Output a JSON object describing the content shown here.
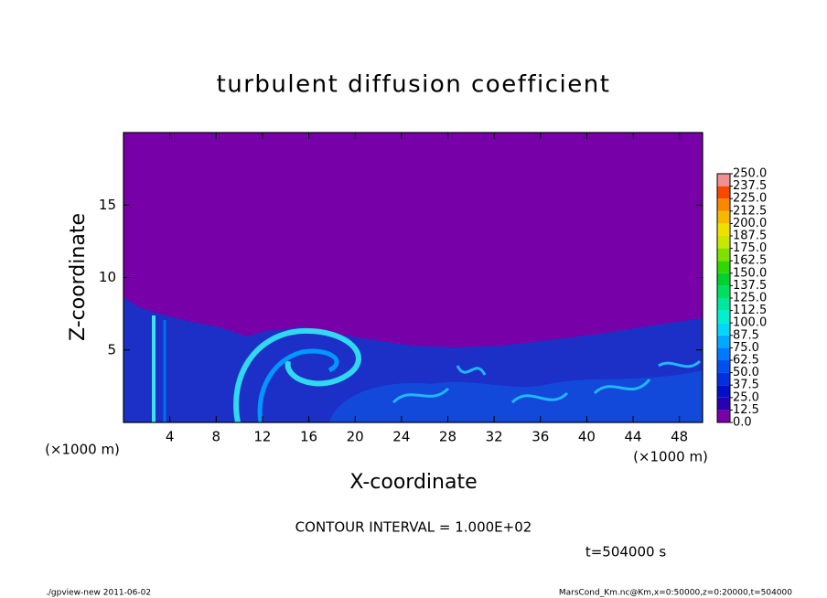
{
  "chart_data": {
    "type": "heatmap",
    "title": "turbulent diffusion coefficient",
    "x_label": "X-coordinate",
    "y_label": "Z-coordinate",
    "x_unit_label": "(×1000 m)",
    "xlim": [
      0,
      50
    ],
    "xticks": [
      4,
      8,
      12,
      16,
      20,
      24,
      28,
      32,
      36,
      40,
      44,
      48
    ],
    "ylim": [
      0,
      20
    ],
    "yticks": [
      5,
      10,
      15
    ],
    "colorbar": {
      "levels": [
        {
          "value": 0,
          "label": "0.0"
        },
        12.5,
        {
          "value": 25,
          "label": "25.0"
        },
        37.5,
        {
          "value": 50,
          "label": "50.0"
        },
        62.5,
        {
          "value": 75,
          "label": "75.0"
        },
        87.5,
        {
          "value": 100,
          "label": "100.0"
        },
        112.5,
        {
          "value": 125,
          "label": "125.0"
        },
        137.5,
        {
          "value": 150,
          "label": "150.0"
        },
        162.5,
        {
          "value": 175,
          "label": "175.0"
        },
        187.5,
        {
          "value": 200,
          "label": "200.0"
        },
        212.5,
        {
          "value": 225,
          "label": "225.0"
        },
        237.5,
        {
          "value": 250,
          "label": "250.0"
        }
      ],
      "colors": [
        "#7800a8",
        "#2800b0",
        "#0010c8",
        "#0030e0",
        "#0050f0",
        "#0078ff",
        "#00a8ff",
        "#00d8f8",
        "#00f0d0",
        "#00e8a0",
        "#00e060",
        "#00d030",
        "#30d800",
        "#80e000",
        "#c8e800",
        "#f0e000",
        "#f8b800",
        "#f88800",
        "#f84800",
        "#f09090"
      ]
    },
    "annotations": {
      "contour_interval": "CONTOUR INTERVAL = 1.000E+02",
      "time": "t=504000 s",
      "footer_left": "./gpview-new   2011-06-02",
      "footer_right": "MarsCond_Km.nc@Km,x=0:50000,z=0:20000,t=504000"
    }
  }
}
